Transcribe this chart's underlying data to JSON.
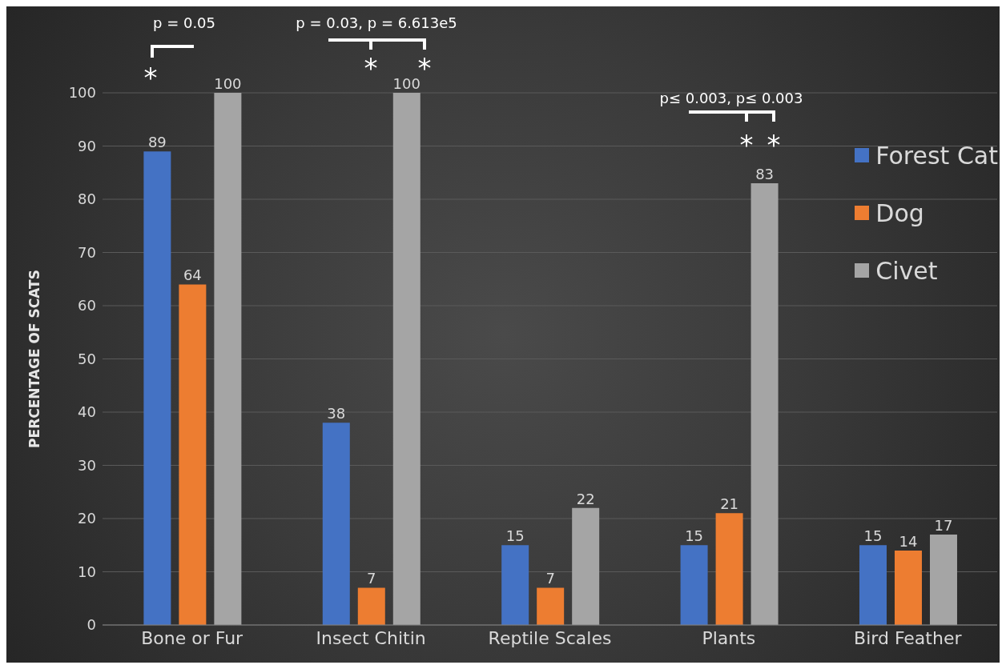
{
  "chart_data": {
    "type": "bar",
    "ylabel": "PERCENTAGE  OF SCATS",
    "categories": [
      "Bone or Fur",
      "Insect Chitin",
      "Reptile Scales",
      "Plants",
      "Bird Feather"
    ],
    "series": [
      {
        "name": "Forest Cat",
        "color": "#4472c4",
        "values": [
          89,
          38,
          15,
          15,
          15
        ]
      },
      {
        "name": "Dog",
        "color": "#ed7d31",
        "values": [
          64,
          7,
          7,
          21,
          14
        ]
      },
      {
        "name": "Civet",
        "color": "#a5a5a5",
        "values": [
          100,
          100,
          22,
          83,
          17
        ]
      }
    ],
    "ylim": [
      0,
      100
    ],
    "yticks": [
      0,
      10,
      20,
      30,
      40,
      50,
      60,
      70,
      80,
      90,
      100
    ],
    "grid": "y",
    "legend": "right",
    "data_labels": true,
    "annotations": [
      "p = 0.05",
      "*",
      "p = 0.03, p = 6.613e5",
      "*",
      "*",
      "p≤ 0.003, p≤ 0.003",
      "*",
      "*"
    ]
  }
}
